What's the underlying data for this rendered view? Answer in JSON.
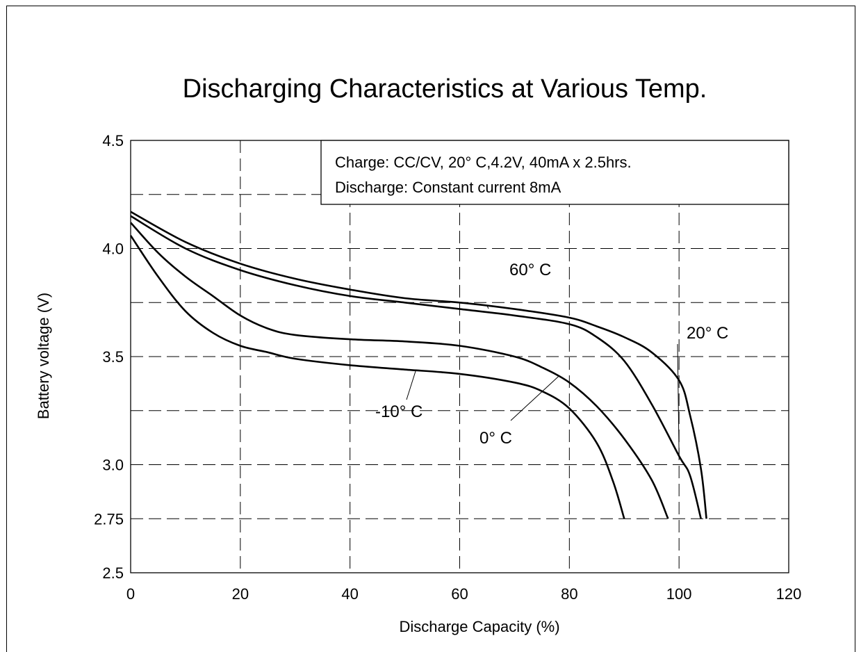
{
  "chart_data": {
    "type": "line",
    "title": "Discharging Characteristics at Various Temp.",
    "xlabel": "Discharge Capacity (%)",
    "ylabel": "Battery voltage (V)",
    "xlim": [
      0,
      120
    ],
    "ylim": [
      2.5,
      4.5
    ],
    "x_ticks": [
      0,
      20,
      40,
      60,
      80,
      100,
      120
    ],
    "x_tick_labels": [
      "0",
      "20",
      "40",
      "60",
      "80",
      "100",
      "120"
    ],
    "y_tick_labels": [
      {
        "value": 4.5,
        "label": "4.5"
      },
      {
        "value": 4.0,
        "label": "4.0"
      },
      {
        "value": 3.5,
        "label": "3.5"
      },
      {
        "value": 3.0,
        "label": "3.0"
      },
      {
        "value": 2.75,
        "label": "2.75"
      },
      {
        "value": 2.5,
        "label": "2.5"
      }
    ],
    "grid_y": [
      4.25,
      4.0,
      3.75,
      3.5,
      3.25,
      3.0,
      2.75
    ],
    "grid_x": [
      20,
      40,
      60,
      80,
      100
    ],
    "grid": true,
    "note": [
      "Charge: CC/CV, 20°  C,4.2V, 40mA x 2.5hrs.",
      "Discharge: Constant current 8mA"
    ],
    "series": [
      {
        "name": "60°  C",
        "x": [
          0,
          10,
          20,
          30,
          40,
          50,
          60,
          70,
          80,
          85,
          90,
          95,
          100,
          102,
          104,
          105
        ],
        "y": [
          4.17,
          4.03,
          3.93,
          3.86,
          3.81,
          3.77,
          3.75,
          3.72,
          3.68,
          3.64,
          3.59,
          3.52,
          3.39,
          3.23,
          2.98,
          2.75
        ]
      },
      {
        "name": "20°  C",
        "x": [
          0,
          10,
          20,
          30,
          40,
          50,
          60,
          70,
          80,
          85,
          90,
          95,
          100,
          102,
          104
        ],
        "y": [
          4.15,
          4.0,
          3.9,
          3.83,
          3.78,
          3.75,
          3.72,
          3.69,
          3.65,
          3.59,
          3.48,
          3.28,
          3.04,
          2.95,
          2.75
        ]
      },
      {
        "name": "0°  C",
        "x": [
          0,
          5,
          10,
          15,
          20,
          25,
          30,
          40,
          50,
          60,
          70,
          75,
          80,
          85,
          90,
          95,
          98
        ],
        "y": [
          4.12,
          3.98,
          3.87,
          3.78,
          3.69,
          3.63,
          3.6,
          3.58,
          3.57,
          3.55,
          3.5,
          3.45,
          3.38,
          3.27,
          3.12,
          2.93,
          2.75
        ]
      },
      {
        "name": "-10°  C",
        "x": [
          0,
          5,
          10,
          15,
          20,
          25,
          30,
          40,
          50,
          60,
          70,
          75,
          80,
          85,
          88,
          90
        ],
        "y": [
          4.06,
          3.87,
          3.71,
          3.61,
          3.55,
          3.52,
          3.49,
          3.46,
          3.44,
          3.42,
          3.38,
          3.34,
          3.26,
          3.1,
          2.92,
          2.75
        ]
      }
    ],
    "annotations": [
      {
        "text": "60°  C",
        "series": "60°  C",
        "at_x": 65
      },
      {
        "text": "20°  C",
        "series": "20°  C",
        "at_x": 100
      },
      {
        "text": "0°  C",
        "series": "0°  C",
        "at_x": 78
      },
      {
        "text": "-10°  C",
        "series": "-10°  C",
        "at_x": 52
      }
    ]
  }
}
